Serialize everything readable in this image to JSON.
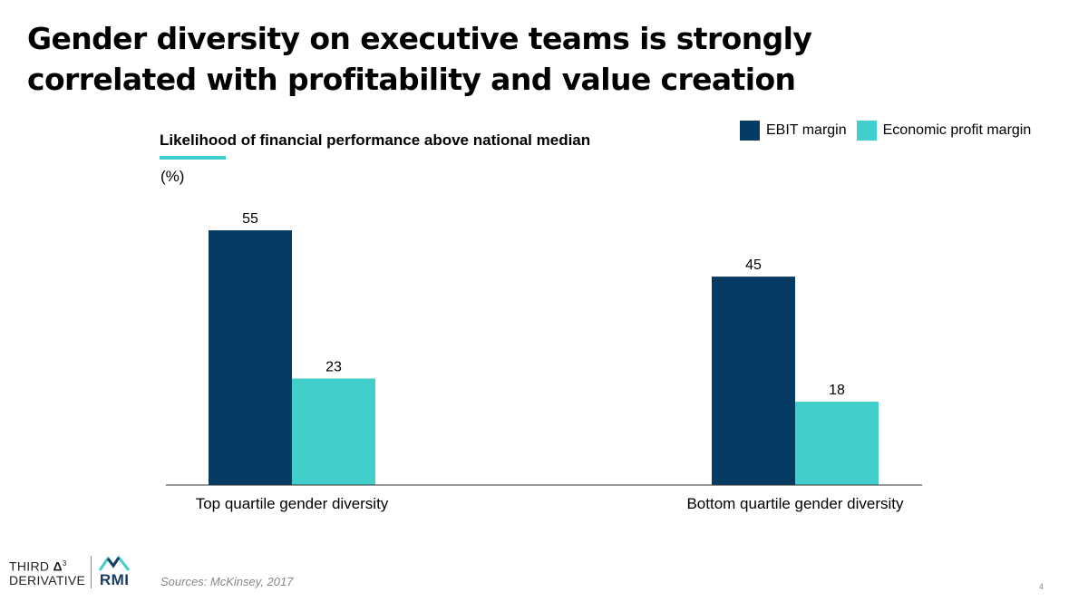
{
  "title": {
    "line1": "Gender diversity on executive teams is strongly",
    "line2": "correlated with profitability and value creation"
  },
  "colors": {
    "ebit": "#063b63",
    "economic": "#42cfcb",
    "accent": "#3fcfcb"
  },
  "chart_data": {
    "type": "bar",
    "title": "Likelihood of financial performance above national median",
    "unit_label": "(%)",
    "categories": [
      "Top quartile gender diversity",
      "Bottom quartile gender diversity"
    ],
    "series": [
      {
        "name": "EBIT margin",
        "values": [
          55,
          45
        ],
        "color": "#063b63"
      },
      {
        "name": "Economic profit margin",
        "values": [
          23,
          18
        ],
        "color": "#42cfcb"
      }
    ],
    "ylim": [
      0,
      60
    ],
    "legend": "top-right",
    "grid": false
  },
  "footer": {
    "logo_left": {
      "line1": "THIRD",
      "line2": "DERIVATIVE",
      "mark": "3"
    },
    "logo_right": "RMI",
    "source": "Sources: McKinsey, 2017",
    "page_number": "4"
  }
}
